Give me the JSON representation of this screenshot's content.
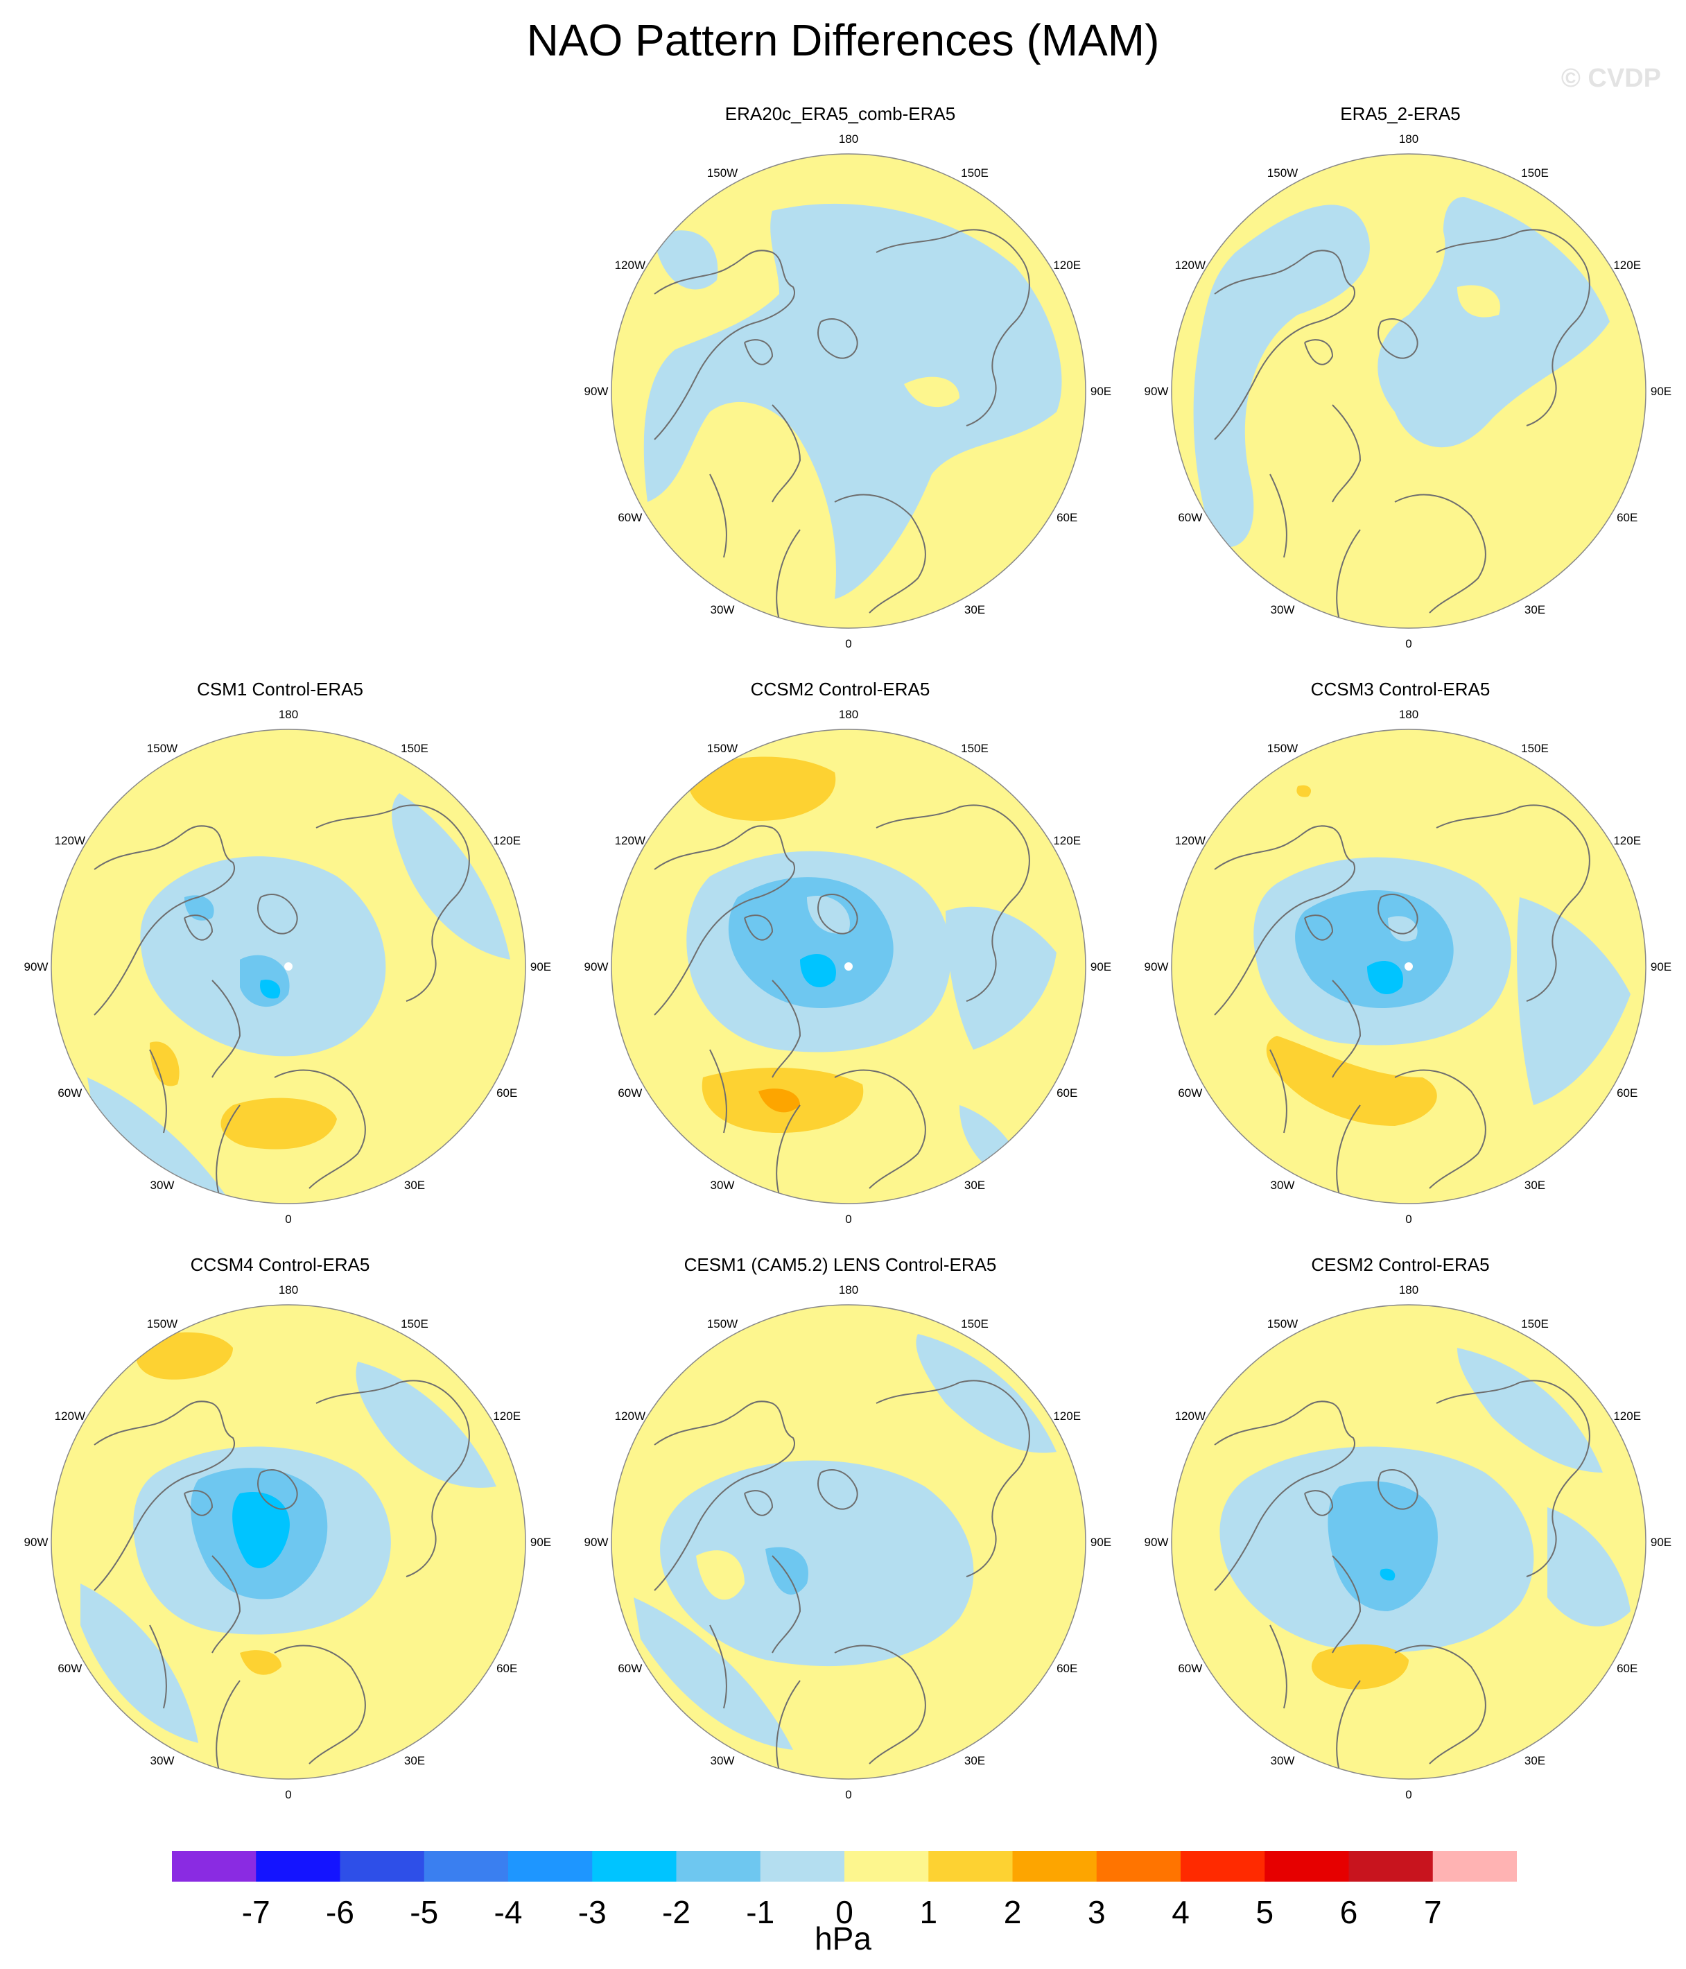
{
  "title": "NAO Pattern Differences (MAM)",
  "watermark": "© CVDP",
  "colors": {
    "neg7": "#8a2be2",
    "neg6": "#1414ff",
    "neg5": "#2e4fe8",
    "neg4": "#3a7ff0",
    "neg3": "#1e96ff",
    "neg2": "#00c4ff",
    "neg1": "#6ec7f0",
    "neg0": "#b4def0",
    "pos0": "#fdf68e",
    "pos1": "#fdd232",
    "pos2": "#fda500",
    "pos3": "#ff7400",
    "pos4": "#ff2a00",
    "pos5": "#e60000",
    "pos6": "#c8141e",
    "pos7": "#ffb3b3"
  },
  "lon_labels": [
    "180",
    "150E",
    "120E",
    "90E",
    "60E",
    "30E",
    "0",
    "30W",
    "60W",
    "90W",
    "120W",
    "150W"
  ],
  "panels": [
    {
      "id": "era20c",
      "title": "ERA20c_ERA5_comb-ERA5"
    },
    {
      "id": "era5_2",
      "title": "ERA5_2-ERA5"
    },
    {
      "id": "csm1",
      "title": "CSM1 Control-ERA5"
    },
    {
      "id": "ccsm2",
      "title": "CCSM2 Control-ERA5"
    },
    {
      "id": "ccsm3",
      "title": "CCSM3 Control-ERA5"
    },
    {
      "id": "ccsm4",
      "title": "CCSM4 Control-ERA5"
    },
    {
      "id": "cesm1",
      "title": "CESM1 (CAM5.2) LENS Control-ERA5"
    },
    {
      "id": "cesm2",
      "title": "CESM2 Control-ERA5"
    }
  ],
  "colorbar": {
    "ticks": [
      "-7",
      "-6",
      "-5",
      "-4",
      "-3",
      "-2",
      "-1",
      "0",
      "1",
      "2",
      "3",
      "4",
      "5",
      "6",
      "7"
    ],
    "unit": "hPa"
  }
}
